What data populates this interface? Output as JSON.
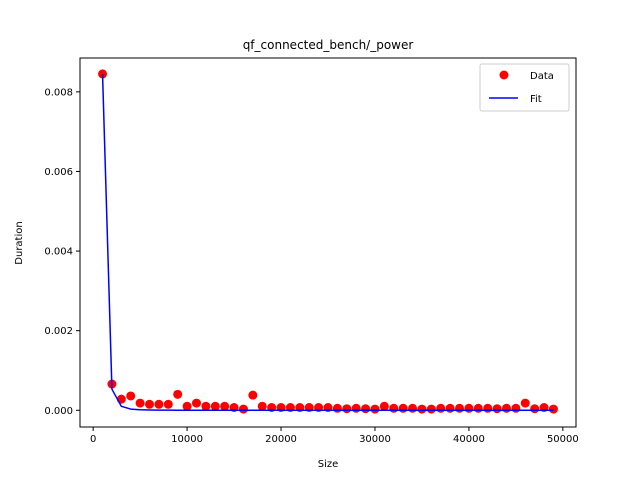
{
  "chart_data": {
    "type": "scatter",
    "title": "qf_connected_bench/_power",
    "xlabel": "Size",
    "ylabel": "Duration",
    "xlim": [
      -1400,
      51400
    ],
    "ylim": [
      -0.00042,
      0.00885
    ],
    "xticks": [
      0,
      10000,
      20000,
      30000,
      40000,
      50000
    ],
    "xtick_labels": [
      "0",
      "10000",
      "20000",
      "30000",
      "40000",
      "50000"
    ],
    "yticks": [
      0,
      0.002,
      0.004,
      0.006,
      0.008
    ],
    "ytick_labels": [
      "0.000",
      "0.002",
      "0.004",
      "0.006",
      "0.008"
    ],
    "grid": false,
    "legend_position": "top-right",
    "series": [
      {
        "name": "Data",
        "kind": "scatter",
        "color": "#ff0000",
        "x": [
          1000,
          2000,
          3000,
          4000,
          5000,
          6000,
          7000,
          8000,
          9000,
          10000,
          11000,
          12000,
          13000,
          14000,
          15000,
          16000,
          17000,
          18000,
          19000,
          20000,
          21000,
          22000,
          23000,
          24000,
          25000,
          26000,
          27000,
          28000,
          29000,
          30000,
          31000,
          32000,
          33000,
          34000,
          35000,
          36000,
          37000,
          38000,
          39000,
          40000,
          41000,
          42000,
          43000,
          44000,
          45000,
          46000,
          47000,
          48000,
          49000
        ],
        "y": [
          0.00845,
          0.00066,
          0.00028,
          0.00036,
          0.00018,
          0.00015,
          0.00015,
          0.00015,
          0.0004,
          0.0001,
          0.00018,
          0.0001,
          0.0001,
          0.0001,
          7e-05,
          3e-05,
          0.00038,
          0.0001,
          7e-05,
          7e-05,
          7e-05,
          7e-05,
          7e-05,
          7e-05,
          7e-05,
          5e-05,
          4e-05,
          5e-05,
          4e-05,
          3e-05,
          0.0001,
          5e-05,
          5e-05,
          5e-05,
          3e-05,
          3e-05,
          5e-05,
          5e-05,
          5e-05,
          5e-05,
          5e-05,
          5e-05,
          4e-05,
          5e-05,
          5e-05,
          0.00018,
          4e-05,
          7e-05,
          3e-05
        ]
      },
      {
        "name": "Fit",
        "kind": "line",
        "color": "#0000ff",
        "x": [
          1000,
          2000,
          3000,
          4000,
          5000,
          6000,
          7000,
          8000,
          9000,
          10000,
          11000,
          12000,
          13000,
          14000,
          15000,
          16000,
          17000,
          18000,
          19000,
          20000,
          21000,
          22000,
          23000,
          24000,
          25000,
          26000,
          27000,
          28000,
          29000,
          30000,
          31000,
          32000,
          33000,
          34000,
          35000,
          36000,
          37000,
          38000,
          39000,
          40000,
          41000,
          42000,
          43000,
          44000,
          45000,
          46000,
          47000,
          48000,
          49000
        ],
        "y": [
          0.00845,
          0.00053,
          0.0001,
          3e-05,
          1.4e-05,
          7e-06,
          4e-06,
          2.5e-06,
          1.6e-06,
          1.1e-06,
          8e-07,
          6e-07,
          4e-07,
          3e-07,
          3e-07,
          2e-07,
          2e-07,
          1e-07,
          1e-07,
          1e-07,
          1e-07,
          1e-07,
          1e-07,
          1e-07,
          1e-07,
          1e-07,
          1e-07,
          1e-07,
          1e-07,
          1e-07,
          1e-07,
          1e-07,
          1e-07,
          1e-07,
          1e-07,
          1e-07,
          1e-07,
          1e-07,
          1e-07,
          1e-07,
          1e-07,
          1e-07,
          1e-07,
          1e-07,
          1e-07,
          1e-07,
          1e-07,
          1e-07,
          1e-07
        ]
      }
    ]
  },
  "legend": {
    "data_label": "Data",
    "fit_label": "Fit"
  }
}
